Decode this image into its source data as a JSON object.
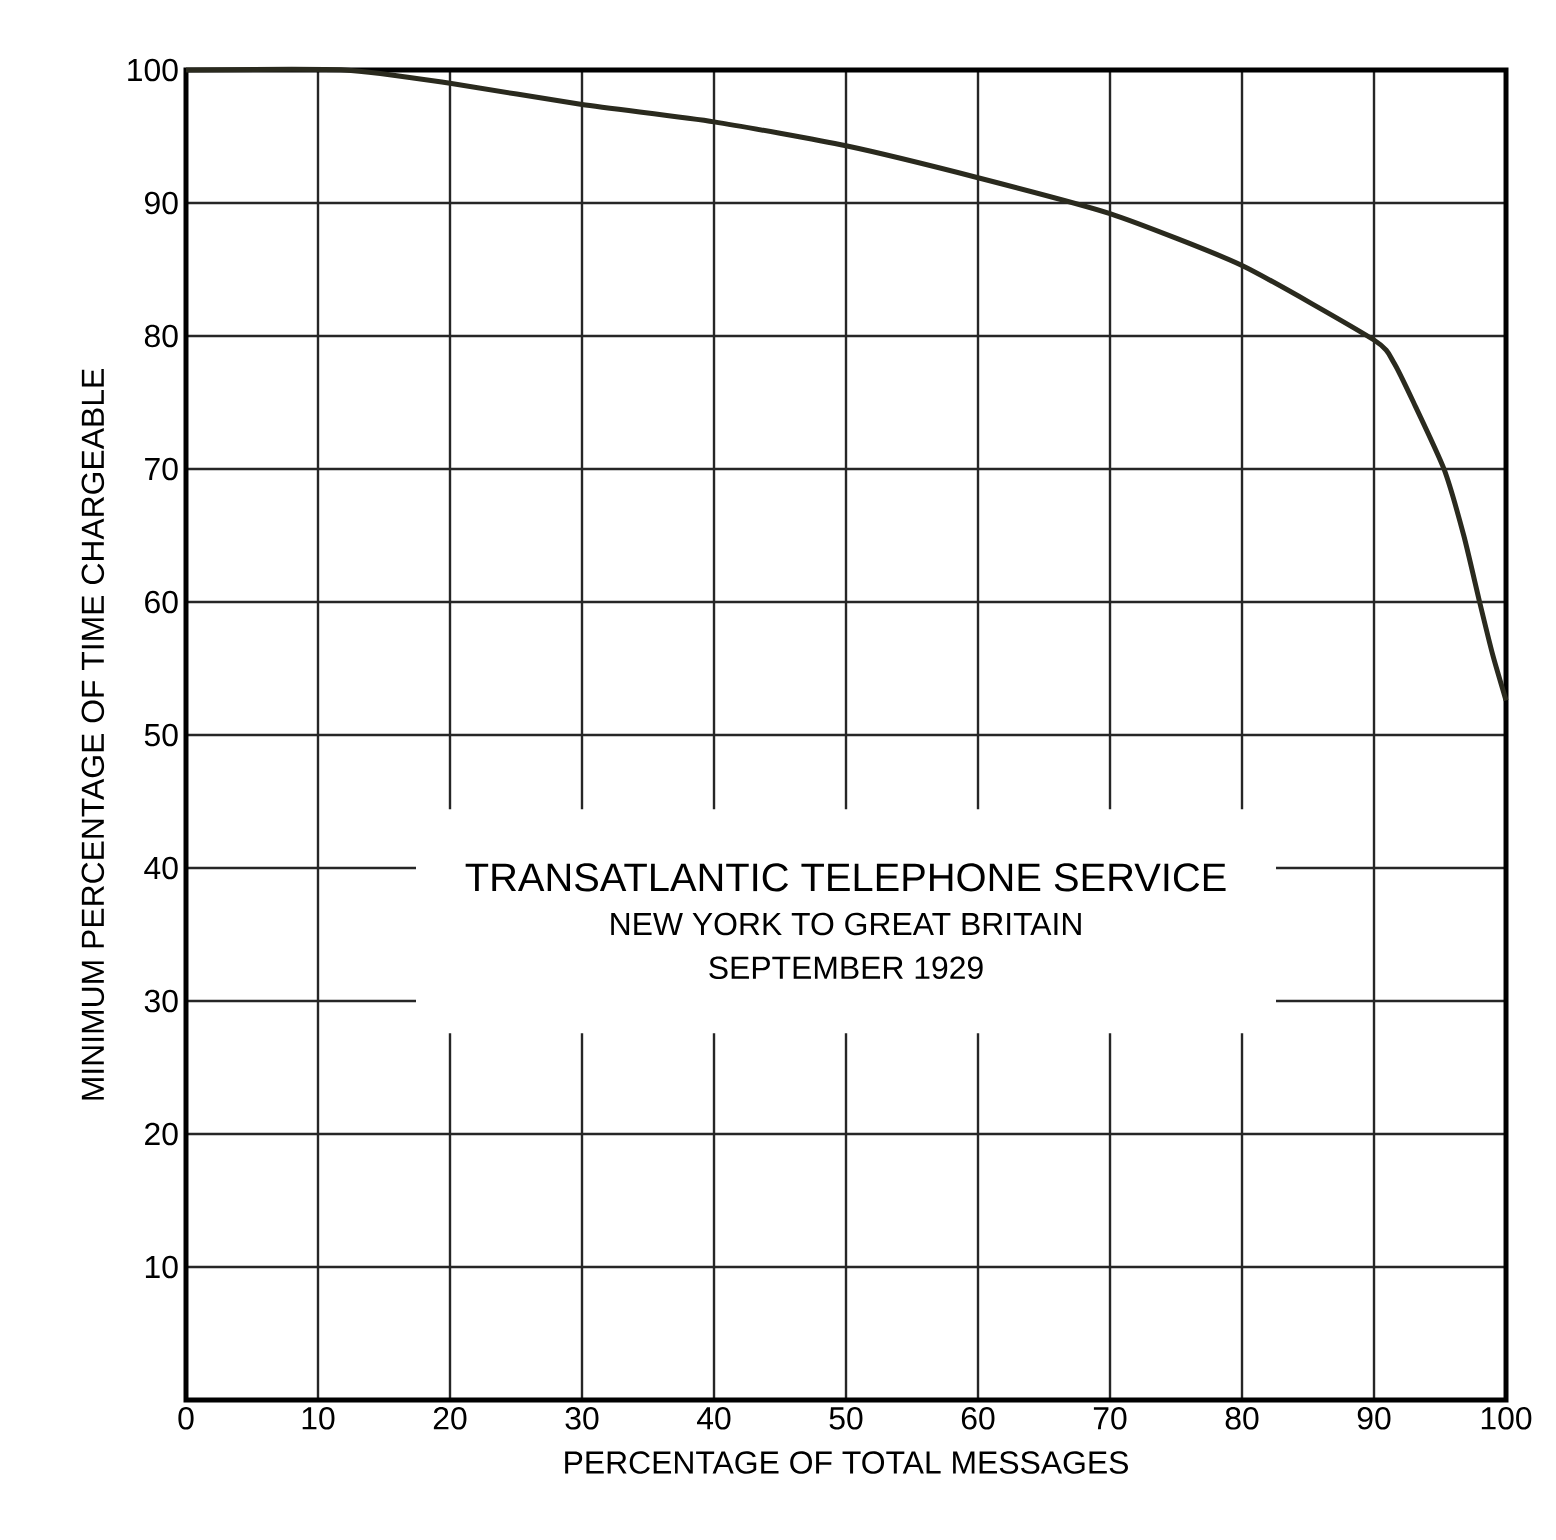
{
  "chart_data": {
    "type": "line",
    "title": "TRANSATLANTIC TELEPHONE SERVICE",
    "subtitle": "NEW YORK TO GREAT BRITAIN",
    "annotations": [
      "SEPTEMBER 1929"
    ],
    "xlabel": "PERCENTAGE OF TOTAL MESSAGES",
    "ylabel": "MINIMUM PERCENTAGE OF TIME CHARGEABLE",
    "x": [
      0,
      12,
      20,
      30,
      40,
      50,
      60,
      70,
      80,
      90,
      91.5,
      93,
      95.3,
      96.8,
      98,
      99,
      100
    ],
    "series": [
      {
        "color": "#2a2a1e",
        "values": [
          100,
          100,
          99,
          97.4,
          96.1,
          94.3,
          91.9,
          89.2,
          85.3,
          79.7,
          78,
          75,
          70,
          65,
          60,
          56,
          52.6
        ]
      }
    ],
    "xlim": [
      0,
      100
    ],
    "ylim": [
      0,
      100
    ],
    "xticks": [
      0,
      10,
      20,
      30,
      40,
      50,
      60,
      70,
      80,
      90,
      100
    ],
    "yticks": [
      10,
      20,
      30,
      40,
      50,
      60,
      70,
      80,
      90,
      100
    ],
    "grid": true,
    "marker": "none",
    "line_style": "solid"
  }
}
